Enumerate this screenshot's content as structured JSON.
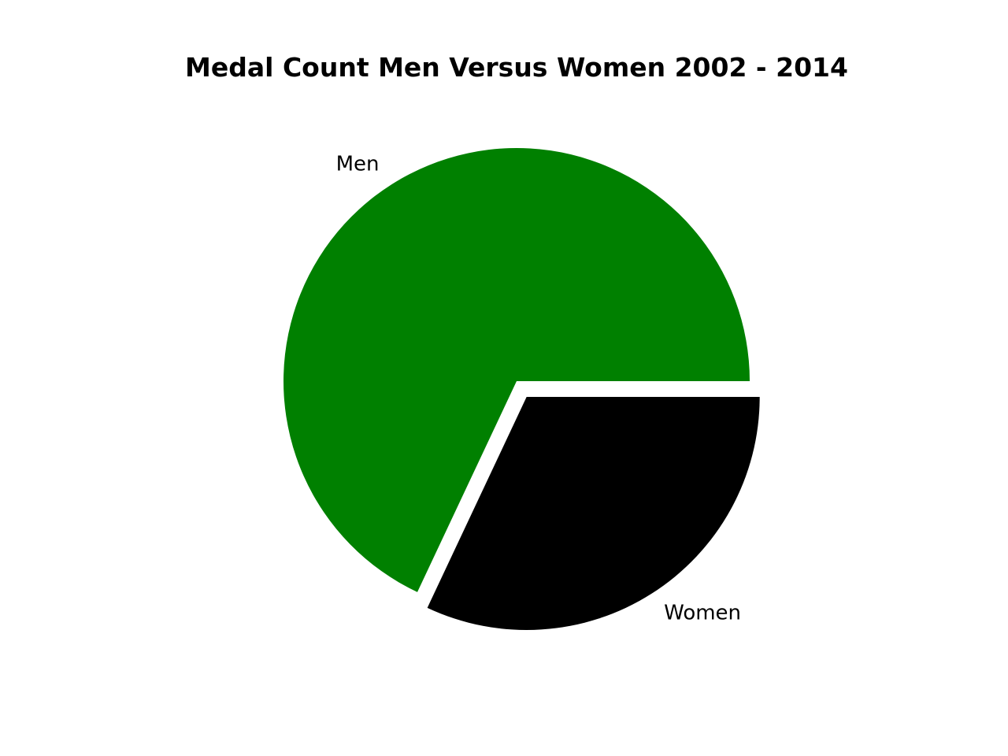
{
  "chart_data": {
    "type": "pie",
    "title": "Medal Count Men Versus Women 2002 - 2014",
    "categories": [
      "Men",
      "Women"
    ],
    "values": [
      68,
      32
    ],
    "colors": [
      "#008000",
      "#000000"
    ],
    "explode": [
      0,
      0.08
    ],
    "start_angle_deg": 0,
    "direction": "counterclockwise",
    "legend": "none"
  }
}
